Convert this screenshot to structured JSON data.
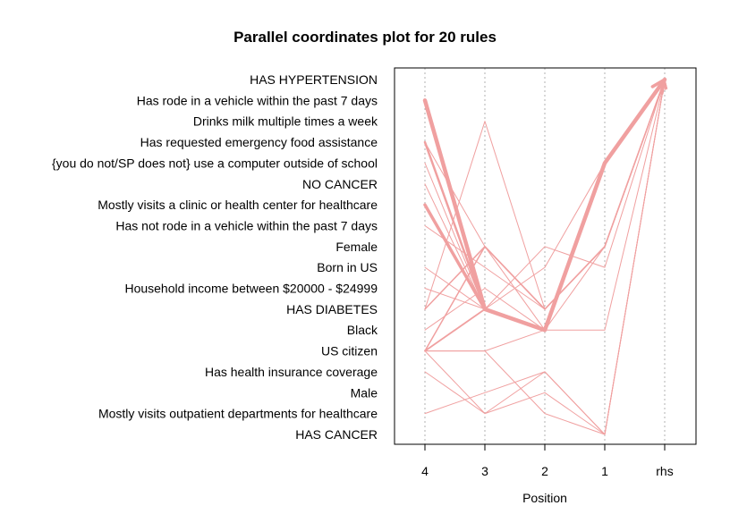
{
  "chart_data": {
    "type": "line",
    "title": "Parallel coordinates plot for 20 rules",
    "xlabel": "Position",
    "ylabel": "",
    "x_categories": [
      "4",
      "3",
      "2",
      "1",
      "rhs"
    ],
    "y_categories": [
      "HAS HYPERTENSION",
      "Has rode in a vehicle within the past 7 days",
      "Drinks milk multiple times a week",
      "Has requested emergency food assistance",
      "{you do not/SP does not} use a computer outside of school",
      "NO CANCER",
      "Mostly visits a clinic or health center for healthcare",
      "Has not rode in a vehicle within the past 7 days",
      "Female",
      "Born in US",
      "Household income between $20000 - $24999",
      "HAS DIABETES",
      "Black",
      "US citizen",
      "Has health insurance coverage",
      "Male",
      "Mostly visits outpatient departments for healthcare",
      "HAS CANCER"
    ],
    "grid": "vertical dotted",
    "line_color": "#f0a0a0",
    "series": [
      {
        "values": [
          1,
          11,
          12,
          4,
          0
        ],
        "weight": 4.5
      },
      {
        "values": [
          6,
          11,
          12,
          4,
          0
        ],
        "weight": 3.5
      },
      {
        "values": [
          3,
          11,
          12,
          4,
          0
        ],
        "weight": 2.5
      },
      {
        "values": [
          1,
          11,
          12,
          4,
          0
        ],
        "weight": 2.0
      },
      {
        "values": [
          13,
          11,
          12,
          4,
          0
        ],
        "weight": 1.8
      },
      {
        "values": [
          11,
          8,
          11,
          8,
          0
        ],
        "weight": 1.5
      },
      {
        "values": [
          13,
          8,
          11,
          8,
          0
        ],
        "weight": 1.5
      },
      {
        "values": [
          5,
          11,
          9,
          4,
          0
        ],
        "weight": 1.0
      },
      {
        "values": [
          7,
          9,
          11,
          8,
          0
        ],
        "weight": 1.0
      },
      {
        "values": [
          10,
          11,
          8,
          9,
          0
        ],
        "weight": 1.0
      },
      {
        "values": [
          11,
          2,
          11,
          8,
          0
        ],
        "weight": 1.0
      },
      {
        "values": [
          12,
          10,
          12,
          4,
          0
        ],
        "weight": 1.0
      },
      {
        "values": [
          13,
          13,
          12,
          4,
          0
        ],
        "weight": 1.0
      },
      {
        "values": [
          3,
          8,
          12,
          4,
          0
        ],
        "weight": 1.0
      },
      {
        "values": [
          16,
          15,
          14,
          17,
          0
        ],
        "weight": 1.0
      },
      {
        "values": [
          13,
          16,
          15,
          17,
          0
        ],
        "weight": 1.0
      },
      {
        "values": [
          14,
          16,
          14,
          17,
          0
        ],
        "weight": 1.0
      },
      {
        "values": [
          4,
          11,
          12,
          12,
          0
        ],
        "weight": 1.0
      },
      {
        "values": [
          13,
          13,
          16,
          17,
          0
        ],
        "weight": 1.0
      },
      {
        "values": [
          9,
          11,
          12,
          8,
          0
        ],
        "weight": 1.0
      }
    ]
  }
}
